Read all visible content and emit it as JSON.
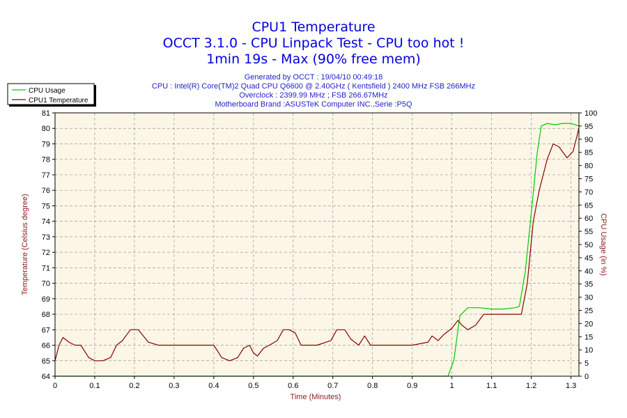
{
  "chart_data": {
    "type": "line",
    "title_lines": [
      "CPU1 Temperature",
      "OCCT 3.1.0 - CPU Linpack Test - CPU too hot !",
      "1min 19s - Max (90% free mem)"
    ],
    "info_lines": [
      "Generated by OCCT : 19/04/10 00:49:18",
      "CPU : Intel(R) Core(TM)2 Quad CPU Q6600 @ 2.40GHz ( Kentsfield ) 2400 MHz FSB 266MHz",
      "Overclock : 2399.99 MHz ; FSB 266.67MHz",
      "Motherboard Brand :ASUSTeK Computer INC.,Serie :P5Q"
    ],
    "xlabel": "Time (Minutes)",
    "ylabel_left": "Temperature (Celsius degree)",
    "ylabel_right": "CPU Usage (in %)",
    "xlim": [
      0,
      1.32
    ],
    "ylim_left": [
      64,
      81
    ],
    "ylim_right": [
      0,
      100
    ],
    "x_ticks": [
      "0",
      "0.1",
      "0.2",
      "0.3",
      "0.4",
      "0.5",
      "0.6",
      "0.7",
      "0.8",
      "0.9",
      "1",
      "1.1",
      "1.2",
      "1.3"
    ],
    "y_left_ticks": [
      "64",
      "65",
      "66",
      "67",
      "68",
      "69",
      "70",
      "71",
      "72",
      "73",
      "74",
      "75",
      "76",
      "77",
      "78",
      "79",
      "80",
      "81"
    ],
    "y_right_ticks": [
      "0",
      "5",
      "10",
      "15",
      "20",
      "25",
      "30",
      "35",
      "40",
      "45",
      "50",
      "55",
      "60",
      "65",
      "70",
      "75",
      "80",
      "85",
      "90",
      "95",
      "100"
    ],
    "grid": true,
    "legend_position": "top-left",
    "colors": {
      "title": "#0000dd",
      "info": "#2222cc",
      "plot_background": "#fbf6e6",
      "grid": "#999999",
      "temperature": "#8b0000",
      "usage": "#00cc00",
      "axis_label": "#8b1a1a"
    },
    "series": [
      {
        "name": "CPU Usage",
        "axis": "right",
        "x": [
          0,
          0.99,
          1.005,
          1.02,
          1.04,
          1.07,
          1.1,
          1.13,
          1.16,
          1.17,
          1.185,
          1.2,
          1.215,
          1.225,
          1.24,
          1.26,
          1.28,
          1.3,
          1.32
        ],
        "y": [
          0,
          0,
          6,
          23,
          26,
          26,
          25.5,
          25.5,
          26,
          26.5,
          40,
          62,
          85,
          95,
          96,
          95.5,
          96,
          96,
          95
        ]
      },
      {
        "name": "CPU1 Temperature",
        "axis": "left",
        "x": [
          0,
          0.01,
          0.02,
          0.035,
          0.05,
          0.065,
          0.085,
          0.1,
          0.12,
          0.14,
          0.155,
          0.17,
          0.19,
          0.2,
          0.21,
          0.235,
          0.26,
          0.3,
          0.35,
          0.4,
          0.42,
          0.44,
          0.46,
          0.475,
          0.49,
          0.5,
          0.51,
          0.525,
          0.54,
          0.56,
          0.575,
          0.59,
          0.605,
          0.62,
          0.66,
          0.695,
          0.71,
          0.73,
          0.745,
          0.765,
          0.78,
          0.795,
          0.83,
          0.9,
          0.94,
          0.95,
          0.965,
          0.98,
          1.0,
          1.015,
          1.025,
          1.04,
          1.06,
          1.08,
          1.1,
          1.13,
          1.16,
          1.175,
          1.19,
          1.205,
          1.22,
          1.24,
          1.255,
          1.27,
          1.29,
          1.305,
          1.32
        ],
        "y": [
          65,
          66,
          66.5,
          66.2,
          66,
          66,
          65.2,
          65,
          65,
          65.2,
          66,
          66.3,
          67,
          67,
          67,
          66.2,
          66,
          66,
          66,
          66,
          65.2,
          65,
          65.2,
          65.8,
          66,
          65.5,
          65.3,
          65.8,
          66,
          66.3,
          67,
          67,
          66.8,
          66,
          66,
          66.3,
          67,
          67,
          66.4,
          66,
          66.6,
          66,
          66,
          66,
          66.2,
          66.6,
          66.3,
          66.7,
          67.1,
          67.6,
          67.3,
          67,
          67.3,
          68,
          68,
          68,
          68,
          68,
          70,
          74,
          76,
          78,
          79,
          78.8,
          78.1,
          78.5,
          80
        ]
      }
    ]
  }
}
